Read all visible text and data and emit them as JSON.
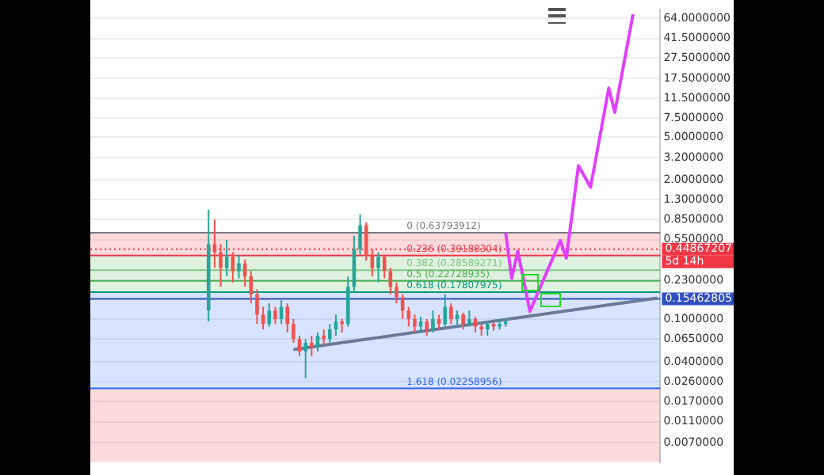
{
  "chart_data": {
    "type": "candlestick",
    "tick_labels": "y",
    "grid": "y",
    "log": "y",
    "legend": false,
    "categories": [
      null,
      null,
      null,
      null,
      null,
      null,
      null,
      null,
      null,
      null,
      null,
      null,
      null,
      null,
      null,
      null,
      null,
      null,
      null,
      null,
      null,
      null,
      null,
      null,
      null,
      null,
      null,
      null,
      null,
      null,
      null,
      null,
      null,
      null,
      null,
      null,
      null,
      null,
      null,
      null,
      null,
      null,
      null,
      null,
      null,
      null,
      null,
      null,
      null,
      null,
      null,
      null,
      null,
      null,
      null,
      null,
      null,
      null,
      null,
      null,
      null,
      null,
      null,
      null,
      null,
      null,
      null,
      null,
      null,
      null,
      null,
      null,
      null,
      null,
      null,
      null,
      null,
      null,
      null,
      null,
      null,
      null,
      null,
      null,
      null,
      null,
      null,
      null,
      null,
      null,
      null,
      null,
      null,
      null
    ],
    "ohlc": [
      null,
      null,
      null,
      null,
      null,
      null,
      null,
      null,
      null,
      null,
      null,
      null,
      null,
      null,
      null,
      null,
      null,
      null,
      null,
      [
        0.12,
        1.05,
        0.095,
        0.5
      ],
      [
        0.5,
        0.85,
        0.3,
        0.42
      ],
      [
        0.42,
        0.5,
        0.2,
        0.3
      ],
      [
        0.3,
        0.55,
        0.25,
        0.38
      ],
      [
        0.38,
        0.42,
        0.22,
        0.28
      ],
      [
        0.28,
        0.4,
        0.24,
        0.33
      ],
      [
        0.33,
        0.36,
        0.2,
        0.25
      ],
      [
        0.25,
        0.28,
        0.14,
        0.17
      ],
      [
        0.17,
        0.19,
        0.09,
        0.11
      ],
      [
        0.11,
        0.13,
        0.08,
        0.09
      ],
      [
        0.09,
        0.14,
        0.085,
        0.12
      ],
      [
        0.12,
        0.13,
        0.09,
        0.1
      ],
      [
        0.1,
        0.15,
        0.09,
        0.13
      ],
      [
        0.13,
        0.14,
        0.075,
        0.09
      ],
      [
        0.09,
        0.1,
        0.06,
        0.065
      ],
      [
        0.065,
        0.07,
        0.045,
        0.05
      ],
      [
        0.05,
        0.065,
        0.028,
        0.06
      ],
      [
        0.06,
        0.07,
        0.045,
        0.055
      ],
      [
        0.055,
        0.075,
        0.05,
        0.07
      ],
      [
        0.07,
        0.08,
        0.058,
        0.065
      ],
      [
        0.065,
        0.09,
        0.06,
        0.08
      ],
      [
        0.08,
        0.11,
        0.07,
        0.095
      ],
      [
        0.095,
        0.1,
        0.075,
        0.09
      ],
      [
        0.09,
        0.25,
        0.085,
        0.2
      ],
      [
        0.2,
        0.6,
        0.18,
        0.45
      ],
      [
        0.45,
        0.95,
        0.4,
        0.75
      ],
      [
        0.75,
        0.8,
        0.35,
        0.4
      ],
      [
        0.4,
        0.45,
        0.25,
        0.3
      ],
      [
        0.3,
        0.42,
        0.22,
        0.38
      ],
      [
        0.38,
        0.4,
        0.24,
        0.28
      ],
      [
        0.28,
        0.3,
        0.17,
        0.2
      ],
      [
        0.2,
        0.22,
        0.14,
        0.16
      ],
      [
        0.16,
        0.17,
        0.1,
        0.12
      ],
      [
        0.12,
        0.13,
        0.085,
        0.1
      ],
      [
        0.1,
        0.11,
        0.075,
        0.085
      ],
      [
        0.085,
        0.105,
        0.075,
        0.095
      ],
      [
        0.095,
        0.1,
        0.07,
        0.08
      ],
      [
        0.08,
        0.12,
        0.075,
        0.1
      ],
      [
        0.1,
        0.11,
        0.08,
        0.09
      ],
      [
        0.09,
        0.17,
        0.085,
        0.13
      ],
      [
        0.13,
        0.14,
        0.09,
        0.1
      ],
      [
        0.1,
        0.12,
        0.085,
        0.11
      ],
      [
        0.11,
        0.115,
        0.08,
        0.09
      ],
      [
        0.09,
        0.12,
        0.085,
        0.1
      ],
      [
        0.1,
        0.105,
        0.075,
        0.085
      ],
      [
        0.085,
        0.09,
        0.07,
        0.08
      ],
      [
        0.08,
        0.095,
        0.07,
        0.09
      ],
      [
        0.09,
        0.095,
        0.078,
        0.085
      ],
      [
        0.085,
        0.1,
        0.08,
        0.09
      ],
      [
        0.09,
        0.1,
        0.085,
        0.095
      ],
      null,
      null,
      null,
      null,
      null,
      null,
      null,
      null,
      null,
      null,
      null,
      null,
      null,
      null,
      null,
      null,
      null,
      null,
      null,
      null,
      null,
      null,
      null,
      null,
      null
    ],
    "series": [
      {
        "type": "line",
        "color": "#e040fb",
        "values": [
          null,
          null,
          null,
          null,
          null,
          null,
          null,
          null,
          null,
          null,
          null,
          null,
          null,
          null,
          null,
          null,
          null,
          null,
          null,
          null,
          null,
          null,
          null,
          null,
          null,
          null,
          null,
          null,
          null,
          null,
          null,
          null,
          null,
          null,
          null,
          null,
          null,
          null,
          null,
          null,
          null,
          null,
          null,
          null,
          null,
          null,
          null,
          null,
          null,
          null,
          null,
          null,
          null,
          null,
          null,
          null,
          null,
          null,
          null,
          null,
          null,
          null,
          null,
          null,
          null,
          null,
          null,
          null,
          0.64,
          0.24,
          0.43,
          null,
          0.118,
          null,
          null,
          null,
          null,
          0.54,
          0.37,
          null,
          2.7,
          null,
          1.7,
          null,
          null,
          14.3,
          8.5,
          null,
          null,
          70,
          null,
          null,
          null,
          null
        ]
      },
      {
        "type": "line",
        "color": "#6b7a99",
        "values": [
          null,
          null,
          null,
          null,
          null,
          null,
          null,
          null,
          null,
          null,
          null,
          null,
          null,
          null,
          null,
          null,
          null,
          null,
          null,
          null,
          null,
          null,
          null,
          null,
          null,
          null,
          null,
          null,
          null,
          null,
          null,
          null,
          null,
          0.052,
          null,
          null,
          null,
          null,
          null,
          null,
          null,
          null,
          null,
          null,
          null,
          null,
          null,
          null,
          null,
          null,
          null,
          null,
          null,
          null,
          null,
          null,
          null,
          null,
          null,
          null,
          null,
          null,
          null,
          null,
          null,
          null,
          null,
          null,
          null,
          null,
          null,
          null,
          null,
          null,
          null,
          null,
          null,
          null,
          null,
          null,
          null,
          null,
          null,
          null,
          null,
          null,
          null,
          null,
          null,
          null,
          null,
          null,
          null,
          0.157
        ]
      }
    ],
    "ylim": [
      0.0046,
      77
    ],
    "yticks": [
      {
        "value": 64,
        "label": "64.0000000"
      },
      {
        "value": 41.5,
        "label": "41.5000000"
      },
      {
        "value": 27.5,
        "label": "27.5000000"
      },
      {
        "value": 17.5,
        "label": "17.5000000"
      },
      {
        "value": 11.5,
        "label": "11.5000000"
      },
      {
        "value": 7.5,
        "label": "7.5000000"
      },
      {
        "value": 5,
        "label": "5.0000000"
      },
      {
        "value": 3.2,
        "label": "3.2000000"
      },
      {
        "value": 2,
        "label": "2.0000000"
      },
      {
        "value": 1.3,
        "label": "1.3000000"
      },
      {
        "value": 0.85,
        "label": "0.8500000"
      },
      {
        "value": 0.55,
        "label": "0.5500000"
      },
      {
        "value": 0.23,
        "label": "0.2300000"
      },
      {
        "value": 0.1,
        "label": "0.1000000"
      },
      {
        "value": 0.065,
        "label": "0.0650000"
      },
      {
        "value": 0.04,
        "label": "0.0400000"
      },
      {
        "value": 0.026,
        "label": "0.0260000"
      },
      {
        "value": 0.017,
        "label": "0.0170000"
      },
      {
        "value": 0.011,
        "label": "0.0110000"
      },
      {
        "value": 0.007,
        "label": "0.0070000"
      }
    ],
    "ref_lines": [
      {
        "axis": "y",
        "value": 0.63793912,
        "label": "0 (0.63793912)",
        "color": "#787b86"
      },
      {
        "axis": "y",
        "value": 0.39188304,
        "label": "0.236 (0.39188304)",
        "color": "#f23645"
      },
      {
        "axis": "y",
        "value": 0.28589271,
        "label": "0.382 (0.28589271)",
        "color": "#81c784"
      },
      {
        "axis": "y",
        "value": 0.22728935,
        "label": "0.5 (0.22728935)",
        "color": "#4caf50"
      },
      {
        "axis": "y",
        "value": 0.17807975,
        "label": "0.618 (0.17807975)",
        "color": "#089981"
      },
      {
        "axis": "y",
        "value": 0.02258956,
        "label": "1.618 (0.02258956)",
        "color": "#2962ff"
      },
      {
        "axis": "y",
        "value": 0.15462805,
        "label": "0.15462805",
        "color": "#2f4fc0",
        "line_style": "solid"
      },
      {
        "axis": "y",
        "value": 0.44867207,
        "label": "0.44867207",
        "color": "#f23645",
        "line_style": "dotted"
      }
    ],
    "bands": [
      {
        "axis": "y",
        "from": 0.39188304,
        "to": 0.63793912,
        "color": "#f23645"
      },
      {
        "axis": "y",
        "from": 0.17807975,
        "to": 0.39188304,
        "color": "#4caf50"
      },
      {
        "axis": "y",
        "from": 0.02258956,
        "to": 0.17807975,
        "color": "#2962ff"
      },
      {
        "axis": "y",
        "from": 0.0046,
        "to": 0.02258956,
        "color": "#f23645"
      }
    ],
    "annotations": [
      "5d 14h"
    ]
  }
}
